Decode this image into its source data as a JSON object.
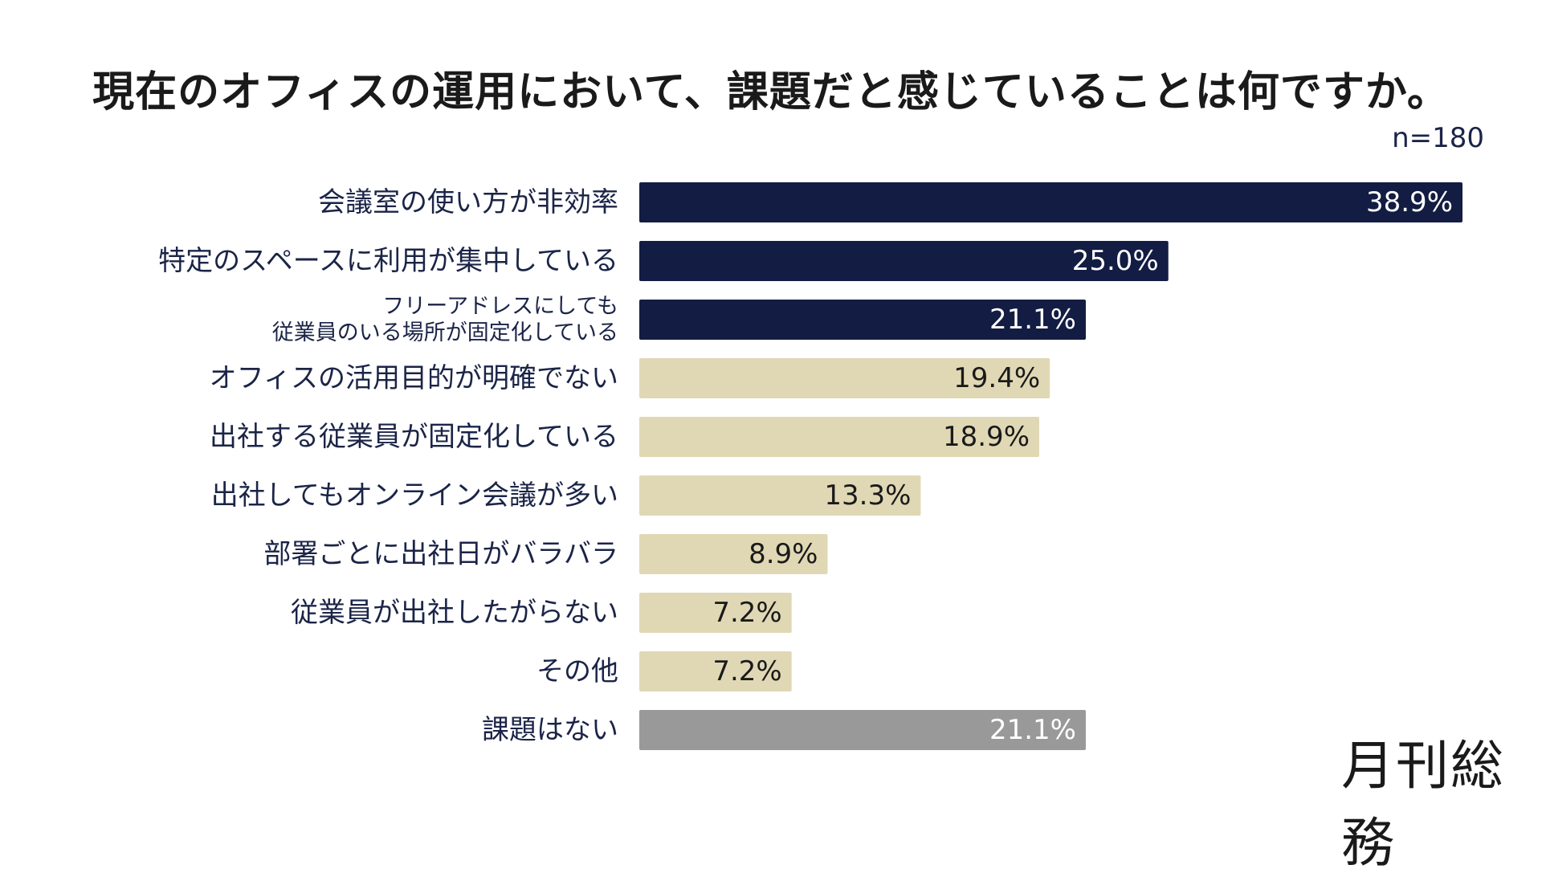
{
  "chart_data": {
    "type": "bar",
    "title": "現在のオフィスの運用において、課題だと感じていることは何ですか。",
    "sample_size": "n=180",
    "categories": [
      "会議室の使い方が非効率",
      "特定のスペースに利用が集中している",
      "フリーアドレスにしても\n従業員のいる場所が固定化している",
      "オフィスの活用目的が明確でない",
      "出社する従業員が固定化している",
      "出社してもオンライン会議が多い",
      "部署ごとに出社日がバラバラ",
      "従業員が出社したがらない",
      "その他",
      "課題はない"
    ],
    "values": [
      38.9,
      25.0,
      21.1,
      19.4,
      18.9,
      13.3,
      8.9,
      7.2,
      7.2,
      21.1
    ],
    "value_labels": [
      "38.9%",
      "25.0%",
      "21.1%",
      "19.4%",
      "18.9%",
      "13.3%",
      "8.9%",
      "7.2%",
      "7.2%",
      "21.1%"
    ],
    "bar_colors": [
      "#131c42",
      "#131c42",
      "#131c42",
      "#e0d8b4",
      "#e0d8b4",
      "#e0d8b4",
      "#e0d8b4",
      "#e0d8b4",
      "#e0d8b4",
      "#999999"
    ],
    "label_colors": [
      "#ffffff",
      "#ffffff",
      "#ffffff",
      "#1a1a1a",
      "#1a1a1a",
      "#1a1a1a",
      "#1a1a1a",
      "#1a1a1a",
      "#1a1a1a",
      "#ffffff"
    ],
    "category_label_color": "#1b2447",
    "xlim": [
      0,
      40
    ],
    "grid": false,
    "legend": "none"
  },
  "brand": {
    "logo_text": "月刊総務"
  }
}
